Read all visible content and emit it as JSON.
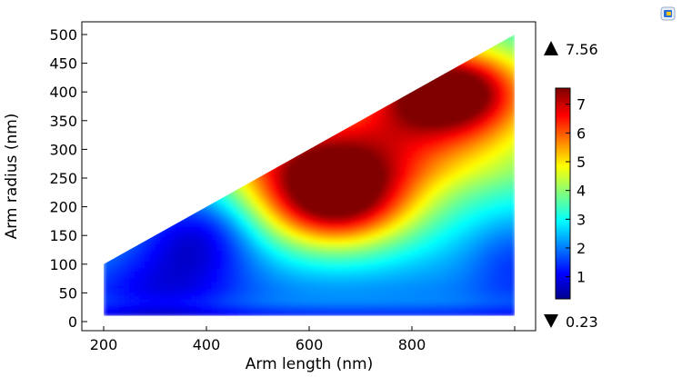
{
  "chart_data": {
    "type": "heatmap",
    "title": "",
    "xlabel": "Arm length (nm)",
    "ylabel": "Arm radius (nm)",
    "xlim": [
      160,
      1040
    ],
    "ylim": [
      -10,
      520
    ],
    "xticks": [
      200,
      400,
      600,
      800
    ],
    "yticks": [
      0,
      50,
      100,
      150,
      200,
      250,
      300,
      350,
      400,
      450,
      500
    ],
    "domain_polygon": [
      [
        200,
        10
      ],
      [
        1000,
        10
      ],
      [
        1000,
        500
      ],
      [
        200,
        100
      ]
    ],
    "colorscale": "jet",
    "color_range": [
      0.23,
      7.56
    ],
    "max_label": "7.56",
    "min_label": "0.23",
    "colorbar_ticks": [
      1,
      2,
      3,
      4,
      5,
      6,
      7
    ],
    "hotspots": [
      {
        "x": 650,
        "y": 215,
        "value": 7.0
      },
      {
        "x": 870,
        "y": 405,
        "value": 7.56
      },
      {
        "x": 380,
        "y": 155,
        "value": 0.5
      },
      {
        "x": 500,
        "y": 35,
        "value": 0.9
      },
      {
        "x": 1000,
        "y": 195,
        "value": 2.5
      }
    ],
    "grid": false,
    "legend": "colorbar-right"
  },
  "toolbar": {
    "icon": "app-icon"
  }
}
